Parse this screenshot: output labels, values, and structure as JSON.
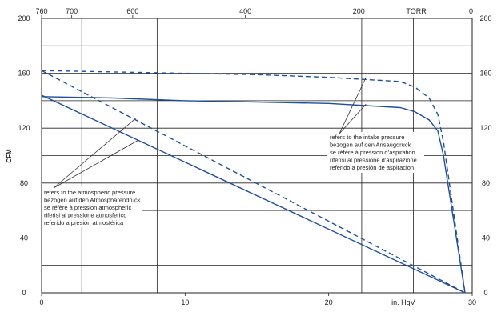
{
  "chart_data": {
    "type": "line",
    "ylabel": "CFM",
    "ylim": [
      0,
      200
    ],
    "y_ticks": [
      "0",
      "40",
      "80",
      "120",
      "160",
      "200"
    ],
    "x_axis_bottom": {
      "unit_label": "in. HgV",
      "range": [
        0,
        30
      ],
      "ticks": [
        "0",
        "10",
        "20",
        "30"
      ]
    },
    "x_axis_top": {
      "unit_label": "TORR",
      "ticks": [
        "760",
        "700",
        "600",
        "400",
        "200",
        "0"
      ]
    },
    "grid": true,
    "series": [
      {
        "style": "dashed",
        "basis": "intake",
        "x": [
          0,
          5,
          10,
          15,
          20,
          25,
          26,
          27,
          27.6,
          28,
          29.5
        ],
        "y": [
          162,
          161,
          160,
          159,
          157,
          154,
          150,
          142,
          130,
          110,
          0
        ]
      },
      {
        "style": "solid",
        "basis": "intake",
        "x": [
          0,
          5,
          10,
          15,
          20,
          25,
          26,
          27,
          27.6,
          28,
          29.5
        ],
        "y": [
          143,
          142,
          140,
          139,
          138,
          135,
          132,
          126,
          118,
          100,
          0
        ]
      },
      {
        "style": "dashed",
        "basis": "atmospheric",
        "x": [
          0,
          29.5
        ],
        "y": [
          162,
          0
        ]
      },
      {
        "style": "solid",
        "basis": "atmospheric",
        "x": [
          0,
          29.5
        ],
        "y": [
          144,
          0
        ]
      }
    ],
    "annotations": [
      {
        "id": "intake",
        "lines": [
          "refers to the intake pressure",
          "bezogen auf den Ansaugdruck",
          "se réfère à pression d’aspiration",
          "riferisi al pressione d’aspirazione",
          "referido a presión de aspiracion"
        ]
      },
      {
        "id": "atmospheric",
        "lines": [
          "refers to the atmospheric pressure",
          "bezogen auf den Atmosphärendruck",
          "se réfère à pression atmospheric",
          "riferisi al pressione atmosferico",
          "referido a presión atmosférica"
        ]
      }
    ]
  }
}
